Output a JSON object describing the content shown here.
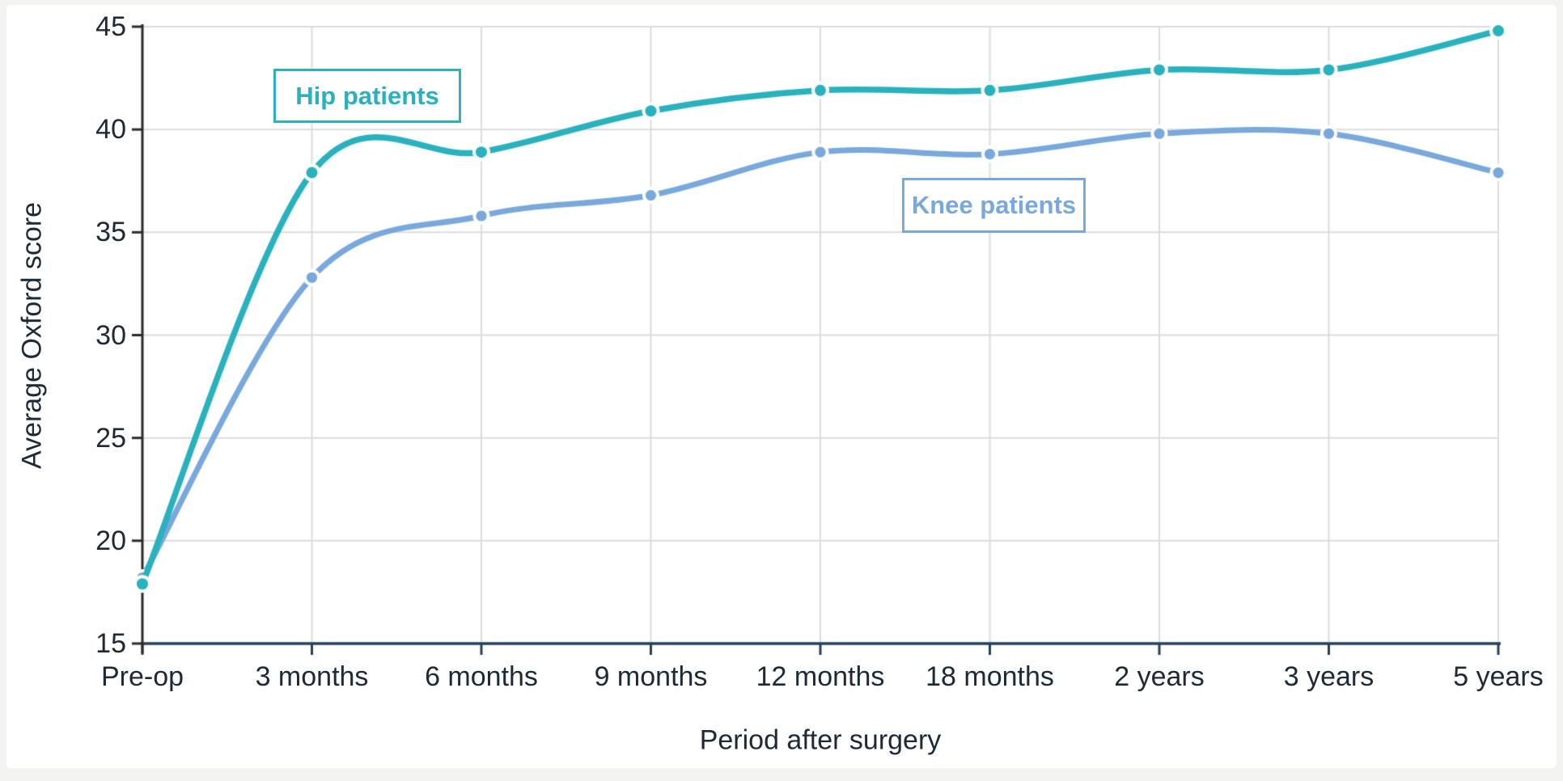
{
  "chart_data": {
    "type": "line",
    "categories": [
      "Pre-op",
      "3 months",
      "6 months",
      "9 months",
      "12 months",
      "18 months",
      "2 years",
      "3 years",
      "5 years"
    ],
    "series": [
      {
        "name": "Knee patients",
        "color": "#78a8dc",
        "values": [
          18.2,
          32.8,
          35.8,
          36.8,
          38.9,
          38.8,
          39.8,
          39.8,
          37.9
        ]
      },
      {
        "name": "Hip patients",
        "color": "#29b1bd",
        "values": [
          17.9,
          37.9,
          38.9,
          40.9,
          41.9,
          41.9,
          42.9,
          42.9,
          44.8
        ]
      }
    ],
    "xlabel": "Period after surgery",
    "ylabel": "Average Oxford score",
    "ylim": [
      15,
      45
    ],
    "yticks": [
      15,
      20,
      25,
      30,
      35,
      40,
      45
    ],
    "grid": true,
    "smooth": true,
    "legend": "boxed labels placed next to each line"
  },
  "colors": {
    "hip": "#29b1bd",
    "knee": "#78a8dc",
    "gridline": "#dcdcdc",
    "x_axis": "#24405a",
    "y_axis": "#2b2b2b",
    "text": "#1d2a35",
    "background": "#f3f3f2",
    "plot_background": "#ffffff"
  }
}
